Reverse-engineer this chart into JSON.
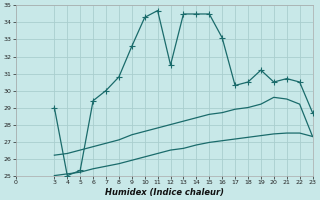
{
  "xlabel": "Humidex (Indice chaleur)",
  "bg_color": "#c8e8e8",
  "grid_color": "#aacece",
  "line_color": "#1a6b6b",
  "xlim": [
    0,
    23
  ],
  "ylim": [
    25,
    35
  ],
  "xticks": [
    0,
    3,
    4,
    5,
    6,
    7,
    8,
    9,
    10,
    11,
    12,
    13,
    14,
    15,
    16,
    17,
    18,
    19,
    20,
    21,
    22,
    23
  ],
  "yticks": [
    25,
    26,
    27,
    28,
    29,
    30,
    31,
    32,
    33,
    34,
    35
  ],
  "line1_x": [
    3,
    4,
    5,
    6,
    7,
    8,
    9,
    10,
    11,
    12,
    13,
    14,
    15,
    16,
    17,
    18,
    19,
    20,
    21,
    22,
    23
  ],
  "line1_y": [
    29.0,
    25.0,
    25.3,
    29.4,
    30.0,
    30.8,
    32.6,
    34.3,
    34.7,
    31.5,
    34.5,
    34.5,
    34.5,
    33.1,
    30.3,
    30.5,
    31.2,
    30.5,
    30.7,
    30.5,
    28.7
  ],
  "line2_x": [
    3,
    4,
    5,
    6,
    7,
    8,
    9,
    10,
    11,
    12,
    13,
    14,
    15,
    16,
    17,
    18,
    19,
    20,
    21,
    22,
    23
  ],
  "line2_y": [
    26.2,
    26.3,
    26.5,
    26.7,
    26.9,
    27.1,
    27.4,
    27.6,
    27.8,
    28.0,
    28.2,
    28.4,
    28.6,
    28.7,
    28.9,
    29.0,
    29.2,
    29.6,
    29.5,
    29.2,
    27.3
  ],
  "line3_x": [
    3,
    4,
    5,
    6,
    7,
    8,
    9,
    10,
    11,
    12,
    13,
    14,
    15,
    16,
    17,
    18,
    19,
    20,
    21,
    22,
    23
  ],
  "line3_y": [
    25.0,
    25.1,
    25.2,
    25.4,
    25.55,
    25.7,
    25.9,
    26.1,
    26.3,
    26.5,
    26.6,
    26.8,
    26.95,
    27.05,
    27.15,
    27.25,
    27.35,
    27.45,
    27.5,
    27.5,
    27.3
  ],
  "line_width": 0.9,
  "marker_size": 4.5
}
